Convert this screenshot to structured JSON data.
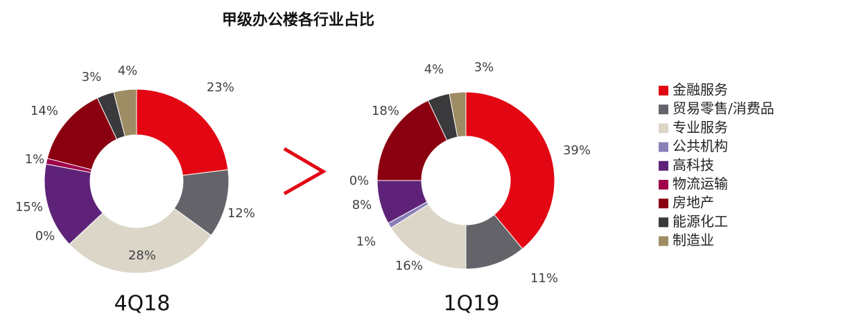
{
  "title": "甲级办公楼各行业占比",
  "chart_data": [
    {
      "type": "pie",
      "title": "4Q18",
      "categories": [
        "金融服务",
        "贸易零售/消费品",
        "专业服务",
        "公共机构",
        "高科技",
        "物流运输",
        "房地产",
        "能源化工",
        "制造业"
      ],
      "values": [
        23,
        12,
        28,
        0,
        15,
        1,
        14,
        3,
        4
      ],
      "value_labels": [
        "23%",
        "12%",
        "28%",
        "0%",
        "15%",
        "1%",
        "14%",
        "3%",
        "4%"
      ],
      "colors": [
        "#e30613",
        "#636369",
        "#dbd6c8",
        "#8b7fb8",
        "#5e2378",
        "#a0004a",
        "#8b0010",
        "#3a3a3c",
        "#9e8c64"
      ]
    },
    {
      "type": "pie",
      "title": "1Q19",
      "categories": [
        "金融服务",
        "贸易零售/消费品",
        "专业服务",
        "公共机构",
        "高科技",
        "物流运输",
        "房地产",
        "能源化工",
        "制造业"
      ],
      "values": [
        39,
        11,
        16,
        1,
        8,
        0,
        18,
        4,
        3
      ],
      "value_labels": [
        "39%",
        "11%",
        "16%",
        "1%",
        "8%",
        "0%",
        "18%",
        "4%",
        "3%"
      ],
      "colors": [
        "#e30613",
        "#636369",
        "#dbd6c8",
        "#8b7fb8",
        "#5e2378",
        "#a0004a",
        "#8b0010",
        "#3a3a3c",
        "#9e8c64"
      ]
    }
  ]
}
